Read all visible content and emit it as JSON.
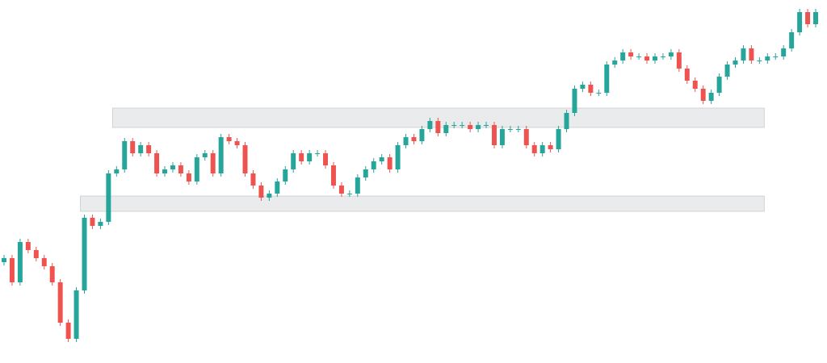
{
  "chart_data": {
    "type": "candlestick",
    "up_color": "#26a69a",
    "down_color": "#ef5350",
    "zone_color": "#e6e7e9",
    "ylim": [
      0,
      450
    ],
    "open": [
      125,
      130,
      100,
      150,
      140,
      130,
      120,
      100,
      50,
      30,
      90,
      180,
      170,
      175,
      235,
      240,
      275,
      260,
      270,
      260,
      235,
      240,
      245,
      235,
      225,
      255,
      260,
      235,
      280,
      275,
      270,
      235,
      220,
      205,
      210,
      225,
      240,
      260,
      250,
      260,
      260,
      245,
      220,
      210,
      210,
      230,
      240,
      250,
      255,
      240,
      270,
      280,
      275,
      290,
      300,
      285,
      295,
      295,
      295,
      290,
      295,
      295,
      270,
      290,
      290,
      290,
      270,
      260,
      270,
      265,
      290,
      310,
      340,
      345,
      335,
      335,
      370,
      375,
      385,
      380,
      380,
      375,
      380,
      380,
      385,
      365,
      350,
      340,
      325,
      335,
      355,
      370,
      375,
      390,
      375,
      375,
      380,
      380,
      390,
      410,
      435,
      420
    ],
    "high": [
      134,
      134,
      154,
      154,
      144,
      134,
      124,
      104,
      54,
      94,
      184,
      184,
      179,
      239,
      244,
      279,
      279,
      274,
      274,
      264,
      244,
      249,
      249,
      239,
      259,
      264,
      264,
      284,
      284,
      279,
      274,
      239,
      224,
      214,
      229,
      244,
      264,
      264,
      264,
      264,
      264,
      249,
      224,
      214,
      234,
      244,
      254,
      259,
      259,
      274,
      284,
      284,
      294,
      304,
      304,
      299,
      299,
      299,
      299,
      299,
      299,
      299,
      294,
      294,
      294,
      294,
      274,
      274,
      274,
      294,
      314,
      344,
      349,
      349,
      339,
      374,
      379,
      389,
      389,
      384,
      384,
      384,
      384,
      389,
      389,
      369,
      354,
      344,
      339,
      359,
      374,
      379,
      394,
      394,
      379,
      384,
      384,
      394,
      414,
      439,
      439,
      439
    ],
    "low": [
      121,
      96,
      96,
      136,
      126,
      116,
      96,
      46,
      26,
      26,
      86,
      166,
      166,
      171,
      231,
      236,
      256,
      256,
      256,
      231,
      231,
      236,
      231,
      221,
      221,
      251,
      231,
      231,
      271,
      266,
      231,
      216,
      201,
      201,
      206,
      221,
      236,
      246,
      246,
      256,
      241,
      216,
      206,
      206,
      206,
      226,
      236,
      246,
      236,
      236,
      266,
      271,
      271,
      286,
      281,
      281,
      291,
      291,
      286,
      286,
      291,
      266,
      266,
      286,
      286,
      266,
      256,
      256,
      261,
      261,
      286,
      306,
      336,
      331,
      331,
      331,
      366,
      371,
      376,
      376,
      371,
      371,
      376,
      376,
      361,
      346,
      336,
      321,
      321,
      331,
      351,
      366,
      371,
      371,
      371,
      371,
      376,
      376,
      386,
      406,
      416,
      416
    ],
    "close": [
      130,
      100,
      150,
      140,
      130,
      120,
      100,
      50,
      30,
      90,
      180,
      170,
      175,
      235,
      240,
      275,
      260,
      270,
      260,
      235,
      240,
      245,
      235,
      225,
      255,
      260,
      235,
      280,
      275,
      270,
      235,
      220,
      205,
      210,
      225,
      240,
      260,
      250,
      260,
      260,
      245,
      220,
      210,
      210,
      230,
      240,
      250,
      255,
      240,
      270,
      280,
      275,
      290,
      300,
      285,
      295,
      295,
      295,
      290,
      295,
      295,
      270,
      290,
      290,
      290,
      270,
      260,
      270,
      265,
      290,
      310,
      340,
      345,
      335,
      335,
      370,
      375,
      385,
      380,
      380,
      375,
      380,
      380,
      385,
      365,
      350,
      340,
      325,
      335,
      355,
      370,
      375,
      390,
      375,
      375,
      380,
      380,
      390,
      410,
      435,
      420,
      435
    ],
    "zones": [
      {
        "low": 292,
        "high": 316,
        "start": 14,
        "end": 94
      },
      {
        "low": 188,
        "high": 207,
        "start": 10,
        "end": 94
      }
    ]
  }
}
